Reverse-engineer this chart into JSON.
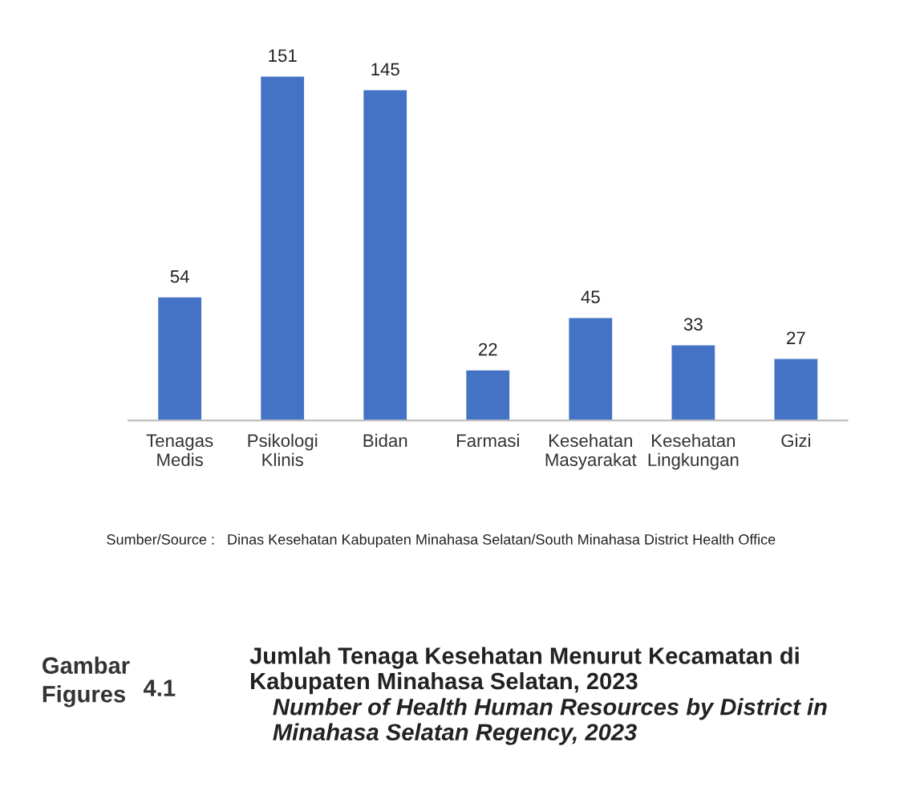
{
  "chart_data": {
    "type": "bar",
    "title": "Jumlah Tenaga Kesehatan Menurut Kecamatan di\nKabupaten Minahasa Selatan, 2023",
    "subtitle": "Number of Health Human Resources by District in\nMinahasa Selatan Regency, 2023",
    "categories": [
      "Tenagas\nMedis",
      "Psikologi\nKlinis",
      "Bidan",
      "Farmasi",
      "Kesehatan\nMasyarakat",
      "Kesehatan\nLingkungan",
      "Gizi"
    ],
    "values": [
      54,
      151,
      145,
      22,
      45,
      33,
      27
    ],
    "color": "#4472c4",
    "data_labels": true,
    "annotations": [
      "Sumber/Source :   Dinas Kesehatan Kabupaten Minahasa Selatan/South Minahasa District Health Office",
      "Gambar\nFigures",
      "4.1"
    ]
  }
}
